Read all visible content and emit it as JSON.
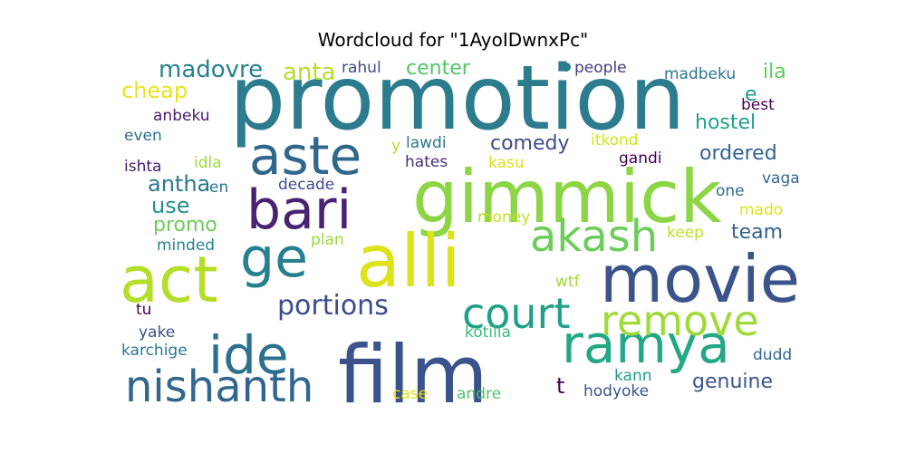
{
  "chart_data": {
    "type": "wordcloud",
    "title": "Wordcloud for \"1AyoIDwnxPc\"",
    "words": [
      {
        "text": "promotion",
        "color": "#2c7c8e"
      },
      {
        "text": "gimmick",
        "color": "#8cd544"
      },
      {
        "text": "alli",
        "color": "#dde319"
      },
      {
        "text": "film",
        "color": "#3a538b"
      },
      {
        "text": "movie",
        "color": "#3a538b"
      },
      {
        "text": "act",
        "color": "#b5de2b"
      },
      {
        "text": "aste",
        "color": "#30678d"
      },
      {
        "text": "ge",
        "color": "#26818e"
      },
      {
        "text": "ide",
        "color": "#2c718e"
      },
      {
        "text": "bari",
        "color": "#482374"
      },
      {
        "text": "ramya",
        "color": "#22a884"
      },
      {
        "text": "nishanth",
        "color": "#31678e"
      },
      {
        "text": "akash",
        "color": "#6ccd5a"
      },
      {
        "text": "court",
        "color": "#1fa187"
      },
      {
        "text": "remove",
        "color": "#a0da39"
      },
      {
        "text": "portions",
        "color": "#3e4c8a"
      },
      {
        "text": "madovre",
        "color": "#26828e"
      },
      {
        "text": "anta",
        "color": "#b5de2b"
      },
      {
        "text": "center",
        "color": "#52c569"
      },
      {
        "text": "ila",
        "color": "#5ec962"
      },
      {
        "text": "cheap",
        "color": "#e7e419"
      },
      {
        "text": "hostel",
        "color": "#1fa187"
      },
      {
        "text": "comedy",
        "color": "#3e4c8a"
      },
      {
        "text": "ordered",
        "color": "#33638d"
      },
      {
        "text": "antha",
        "color": "#2a788e"
      },
      {
        "text": "use",
        "color": "#21918c"
      },
      {
        "text": "promo",
        "color": "#6ccd5a"
      },
      {
        "text": "team",
        "color": "#35608d"
      },
      {
        "text": "genuine",
        "color": "#3a548c"
      },
      {
        "text": "e",
        "color": "#1f958b"
      },
      {
        "text": "t",
        "color": "#440154"
      },
      {
        "text": "rahul",
        "color": "#3e4a89"
      },
      {
        "text": "people",
        "color": "#443983"
      },
      {
        "text": "madbeku",
        "color": "#2a768e"
      },
      {
        "text": "best",
        "color": "#440154"
      },
      {
        "text": "anbeku",
        "color": "#481a6c"
      },
      {
        "text": "even",
        "color": "#2d708e"
      },
      {
        "text": "lawdi",
        "color": "#2a768e"
      },
      {
        "text": "y",
        "color": "#b5de2b"
      },
      {
        "text": "itkond",
        "color": "#d2e21b"
      },
      {
        "text": "hates",
        "color": "#472d7b"
      },
      {
        "text": "ishta",
        "color": "#481a6c"
      },
      {
        "text": "idla",
        "color": "#9fda3a"
      },
      {
        "text": "kasu",
        "color": "#d8e219"
      },
      {
        "text": "gandi",
        "color": "#440154"
      },
      {
        "text": "vaga",
        "color": "#32648e"
      },
      {
        "text": "en",
        "color": "#2c718e"
      },
      {
        "text": "decade",
        "color": "#3e4a89"
      },
      {
        "text": "one",
        "color": "#31688e"
      },
      {
        "text": "money",
        "color": "#c2df23"
      },
      {
        "text": "mado",
        "color": "#dde318"
      },
      {
        "text": "minded",
        "color": "#26828e"
      },
      {
        "text": "plan",
        "color": "#9bd93c"
      },
      {
        "text": "keep",
        "color": "#bddf26"
      },
      {
        "text": "wtf",
        "color": "#a2da37"
      },
      {
        "text": "tu",
        "color": "#440154"
      },
      {
        "text": "yake",
        "color": "#3b518b"
      },
      {
        "text": "kotilla",
        "color": "#3bbb75"
      },
      {
        "text": "karchige",
        "color": "#2a788e"
      },
      {
        "text": "dudd",
        "color": "#31678e"
      },
      {
        "text": "kann",
        "color": "#1e9c89"
      },
      {
        "text": "case",
        "color": "#e5e419"
      },
      {
        "text": "andre",
        "color": "#50c46a"
      },
      {
        "text": "hodyoke",
        "color": "#3b528b"
      }
    ]
  }
}
